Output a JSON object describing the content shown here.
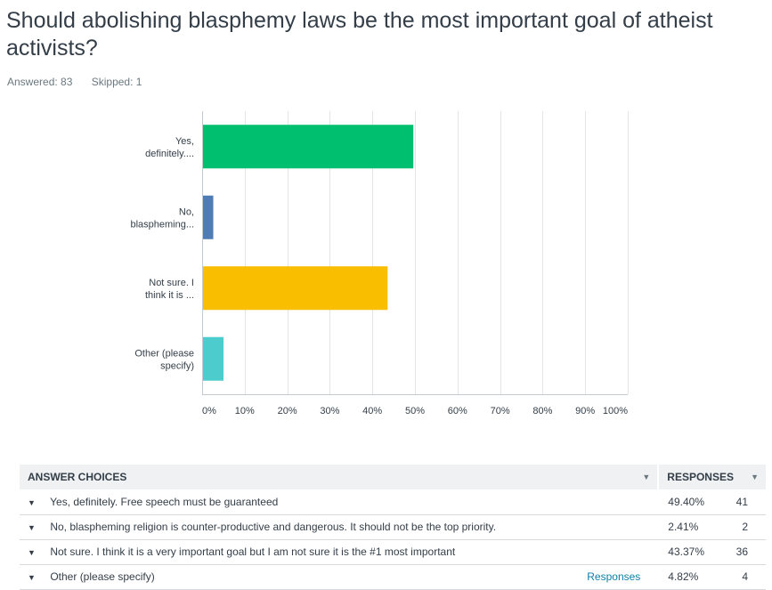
{
  "question": {
    "title": "Should abolishing blasphemy laws be the most important goal of atheist activists?",
    "answered_label": "Answered: 83",
    "skipped_label": "Skipped: 1"
  },
  "colors": {
    "grid": "#e3e6e8",
    "axis": "#c4cacd",
    "series": [
      "#00bf6f",
      "#507cb6",
      "#f9be00",
      "#4ccccc"
    ]
  },
  "chart_data": {
    "type": "bar",
    "orientation": "horizontal",
    "title": "Should abolishing blasphemy laws be the most important goal of atheist activists?",
    "categories": [
      [
        "Yes,",
        "definitely...."
      ],
      [
        "No,",
        "blaspheming..."
      ],
      [
        "Not sure. I",
        "think it is ..."
      ],
      [
        "Other (please",
        "specify)"
      ]
    ],
    "values": [
      49.4,
      2.41,
      43.37,
      4.82
    ],
    "xlim": [
      0,
      100
    ],
    "ticks": [
      "0%",
      "10%",
      "20%",
      "30%",
      "40%",
      "50%",
      "60%",
      "70%",
      "80%",
      "90%",
      "100%"
    ],
    "grid": true
  },
  "table": {
    "headers": {
      "choices": "ANSWER CHOICES",
      "responses": "RESPONSES"
    },
    "responses_link": "Responses",
    "rows": [
      {
        "choice": "Yes, definitely. Free speech must be guaranteed",
        "percent": "49.40%",
        "count": "41"
      },
      {
        "choice": "No, blaspheming religion is counter-productive and dangerous. It should not be the top priority.",
        "percent": "2.41%",
        "count": "2"
      },
      {
        "choice": "Not sure. I think it is a very important goal but I am not sure it is the #1 most important",
        "percent": "43.37%",
        "count": "36"
      },
      {
        "choice": "Other (please specify)",
        "percent": "4.82%",
        "count": "4"
      }
    ]
  }
}
